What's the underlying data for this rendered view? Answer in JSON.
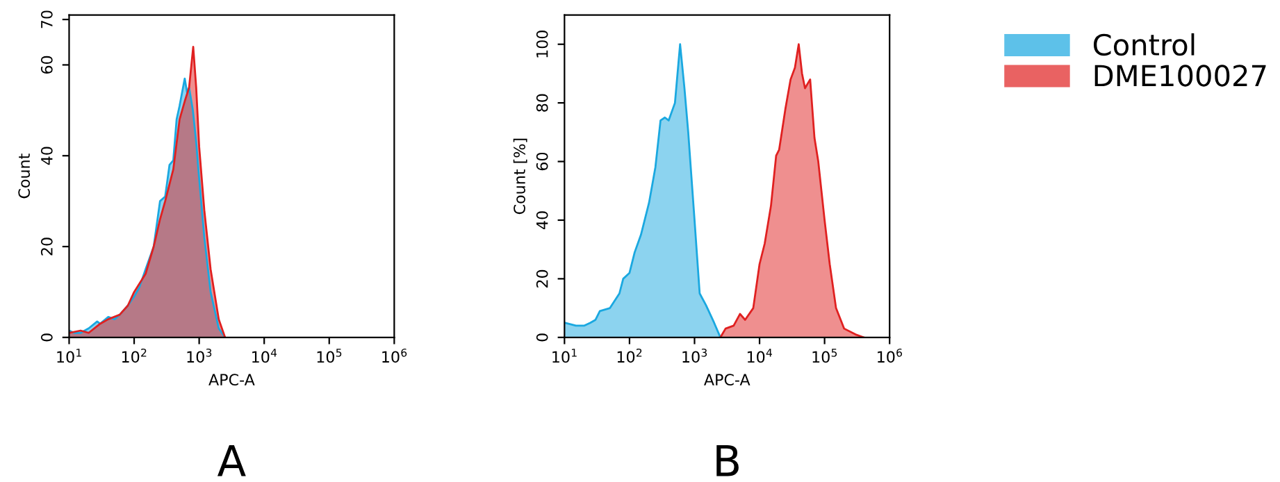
{
  "chart_data": [
    {
      "type": "area",
      "xlabel": "APC-A",
      "ylabel": "Count",
      "log": "x",
      "xlim": [
        10,
        1000000
      ],
      "ylim": [
        0,
        71
      ],
      "xticks": [
        {
          "value": 10,
          "label": "10$^{1}$"
        },
        {
          "value": 100,
          "label": "10$^{2}$"
        },
        {
          "value": 1000,
          "label": "10$^{3}$"
        },
        {
          "value": 10000,
          "label": "10$^{4}$"
        },
        {
          "value": 100000,
          "label": "10$^{5}$"
        },
        {
          "value": 1000000,
          "label": "10$^{6}$"
        }
      ],
      "yticks": [
        0,
        20,
        40,
        60,
        70
      ],
      "grid": false,
      "legend": "right",
      "annotations": [
        "A"
      ],
      "series": [
        {
          "name": "Control",
          "color": "#1aa8e0",
          "x": [
            10,
            12,
            15,
            20,
            27,
            30,
            40,
            50,
            60,
            80,
            100,
            120,
            150,
            200,
            250,
            300,
            350,
            400,
            450,
            500,
            600,
            650,
            700,
            800,
            900,
            1000,
            1200,
            1500,
            2000,
            2500
          ],
          "values": [
            1.5,
            1,
            1,
            2,
            3.5,
            3,
            4.5,
            4,
            5,
            7,
            9,
            11,
            15,
            20,
            30,
            31,
            38,
            39,
            48,
            51,
            57,
            54,
            55,
            50,
            43,
            35,
            22,
            10,
            2,
            0
          ]
        },
        {
          "name": "DME100027",
          "color": "#e02020",
          "x": [
            10,
            15,
            20,
            30,
            40,
            60,
            80,
            100,
            150,
            200,
            250,
            300,
            400,
            500,
            600,
            700,
            810,
            900,
            1000,
            1200,
            1500,
            2000,
            2500
          ],
          "values": [
            1,
            1.5,
            1,
            3,
            4,
            5,
            7,
            10,
            14,
            20,
            26,
            30,
            37,
            48,
            52,
            55,
            64,
            55,
            42,
            28,
            15,
            4,
            0
          ]
        }
      ]
    },
    {
      "type": "area",
      "xlabel": "APC-A",
      "ylabel": "Count [%]",
      "log": "x",
      "xlim": [
        10,
        1000000
      ],
      "ylim": [
        0,
        110
      ],
      "xticks": [
        {
          "value": 10,
          "label": "10$^{1}$"
        },
        {
          "value": 100,
          "label": "10$^{2}$"
        },
        {
          "value": 1000,
          "label": "10$^{3}$"
        },
        {
          "value": 10000,
          "label": "10$^{4}$"
        },
        {
          "value": 100000,
          "label": "10$^{5}$"
        },
        {
          "value": 1000000,
          "label": "10$^{6}$"
        }
      ],
      "yticks": [
        0,
        20,
        40,
        60,
        80,
        100
      ],
      "grid": false,
      "annotations": [
        "B"
      ],
      "series": [
        {
          "color": "#1aa8e0",
          "x": [
            10,
            15,
            20,
            25,
            30,
            35,
            50,
            70,
            80,
            100,
            120,
            150,
            200,
            250,
            300,
            350,
            400,
            500,
            600,
            700,
            800,
            1000,
            1200,
            1500,
            2000,
            2500
          ],
          "values": [
            5,
            4,
            4,
            5,
            6,
            9,
            10,
            15,
            20,
            22,
            29,
            35,
            46,
            58,
            74,
            75,
            74,
            80,
            100,
            85,
            70,
            40,
            15,
            11,
            5,
            0
          ]
        },
        {
          "color": "#e02020",
          "x": [
            2500,
            3000,
            4000,
            5000,
            6000,
            8000,
            10000,
            12000,
            15000,
            18000,
            20000,
            25000,
            30000,
            35000,
            40000,
            45000,
            50000,
            60000,
            70000,
            80000,
            100000,
            120000,
            150000,
            200000,
            300000,
            400000
          ],
          "values": [
            0,
            3,
            4,
            8,
            6,
            10,
            25,
            32,
            45,
            62,
            64,
            78,
            88,
            92,
            100,
            90,
            85,
            88,
            68,
            60,
            40,
            25,
            10,
            3,
            1,
            0
          ]
        }
      ]
    }
  ]
}
